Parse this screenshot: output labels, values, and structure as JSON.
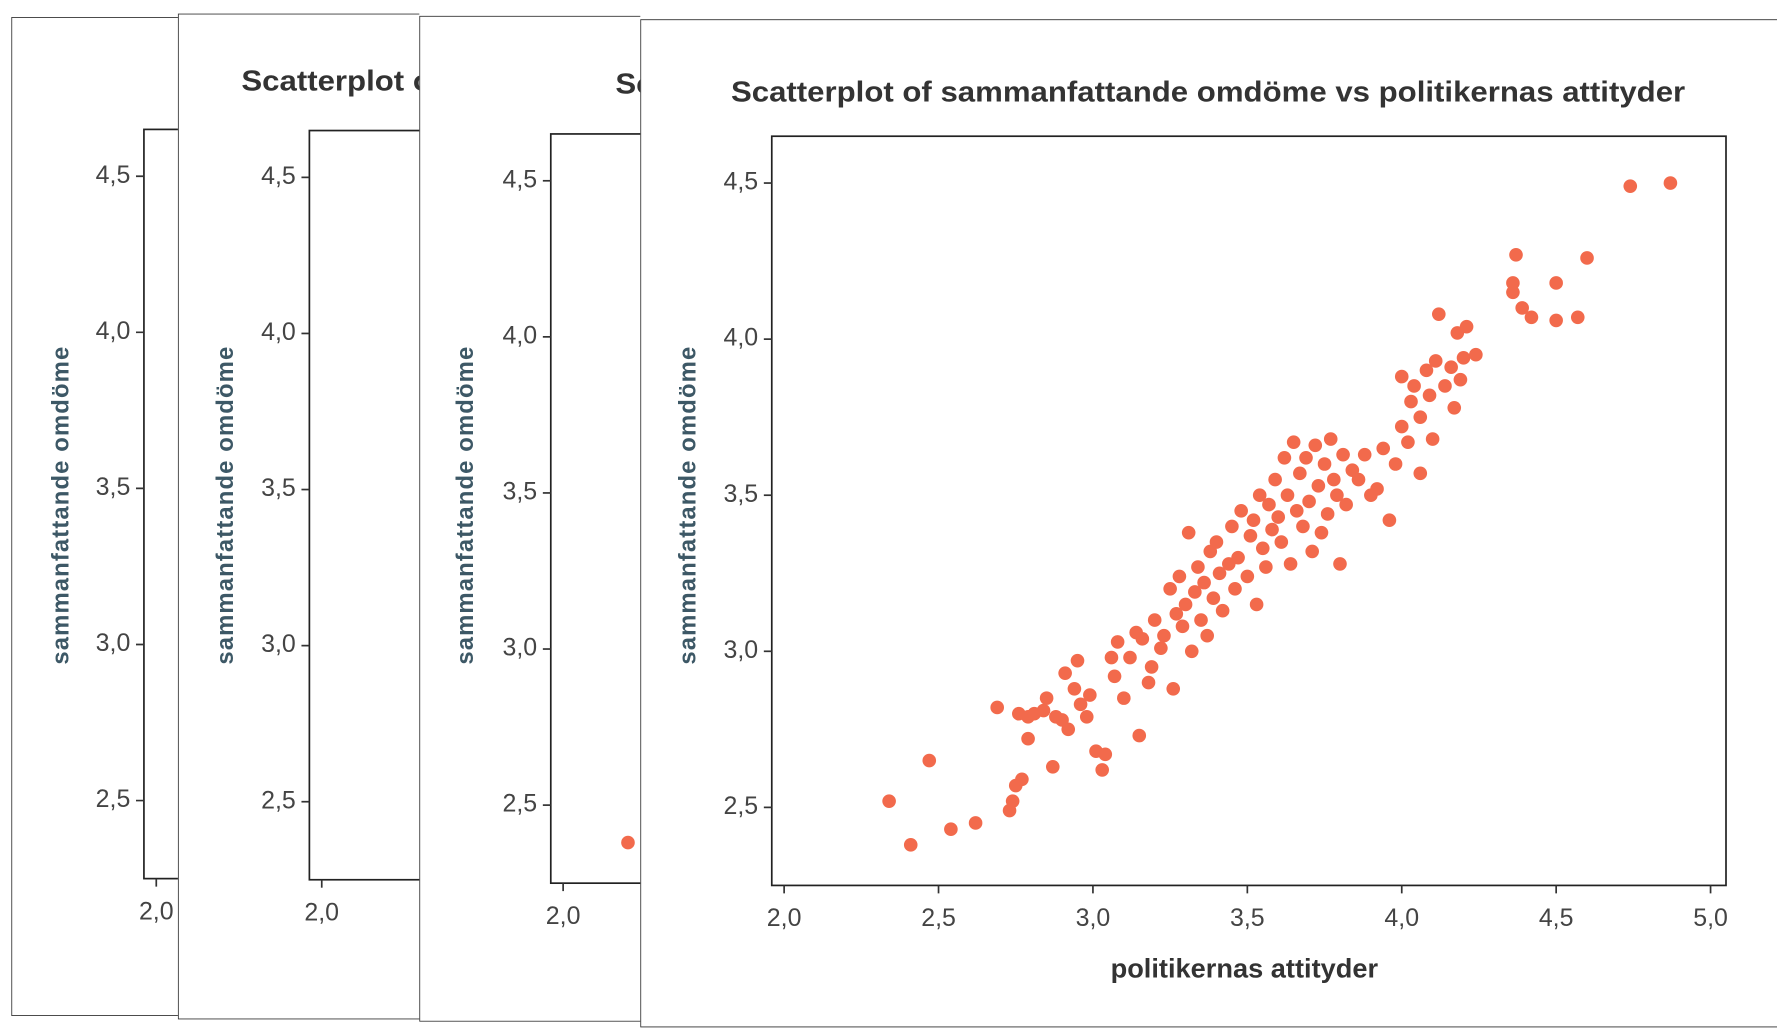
{
  "chart_data": [
    {
      "type": "scatter",
      "ylabel": "sammanfattande omdöme",
      "xlim": [
        1.96,
        5.05
      ],
      "ylim": [
        2.25,
        4.65
      ],
      "xticks": [
        {
          "value": 2.0,
          "label": "2,0"
        }
      ],
      "yticks": [
        {
          "value": 2.5,
          "label": "2,5"
        },
        {
          "value": 3.0,
          "label": "3,0"
        },
        {
          "value": 3.5,
          "label": "3,5"
        },
        {
          "value": 4.0,
          "label": "4,0"
        },
        {
          "value": 4.5,
          "label": "4,5"
        }
      ]
    },
    {
      "type": "scatter",
      "title": "Scatterplot of sammanfattande omdöme vs politikernas attityder",
      "ylabel": "sammanfattande omdöme",
      "xlim": [
        1.96,
        5.05
      ],
      "ylim": [
        2.25,
        4.65
      ],
      "xticks": [
        {
          "value": 2.0,
          "label": "2,0"
        }
      ],
      "yticks": [
        {
          "value": 2.5,
          "label": "2,5"
        },
        {
          "value": 3.0,
          "label": "3,0"
        },
        {
          "value": 3.5,
          "label": "3,5"
        },
        {
          "value": 4.0,
          "label": "4,0"
        },
        {
          "value": 4.5,
          "label": "4,5"
        }
      ]
    },
    {
      "type": "scatter",
      "title": "Scatterplot of sammanfattande omdöme vs politikernas attityder",
      "ylabel": "sammanfattande omdöme",
      "xlim": [
        1.96,
        5.05
      ],
      "ylim": [
        2.25,
        4.65
      ],
      "xticks": [
        {
          "value": 2.0,
          "label": "2,0"
        }
      ],
      "yticks": [
        {
          "value": 2.5,
          "label": "2,5"
        },
        {
          "value": 3.0,
          "label": "3,0"
        },
        {
          "value": 3.5,
          "label": "3,5"
        },
        {
          "value": 4.0,
          "label": "4,0"
        },
        {
          "value": 4.5,
          "label": "4,5"
        }
      ],
      "color": "#f26a4c",
      "x": [
        2.21
      ],
      "values": [
        2.38
      ]
    },
    {
      "type": "scatter",
      "title": "Scatterplot of sammanfattande omdöme vs politikernas attityder",
      "xlabel": "politikernas attityder",
      "ylabel": "sammanfattande omdöme",
      "xlim": [
        1.96,
        5.05
      ],
      "ylim": [
        2.25,
        4.65
      ],
      "xticks": [
        {
          "value": 2.0,
          "label": "2,0"
        },
        {
          "value": 2.5,
          "label": "2,5"
        },
        {
          "value": 3.0,
          "label": "3,0"
        },
        {
          "value": 3.5,
          "label": "3,5"
        },
        {
          "value": 4.0,
          "label": "4,0"
        },
        {
          "value": 4.5,
          "label": "4,5"
        },
        {
          "value": 5.0,
          "label": "5,0"
        }
      ],
      "yticks": [
        {
          "value": 2.5,
          "label": "2,5"
        },
        {
          "value": 3.0,
          "label": "3,0"
        },
        {
          "value": 3.5,
          "label": "3,5"
        },
        {
          "value": 4.0,
          "label": "4,0"
        },
        {
          "value": 4.5,
          "label": "4,5"
        }
      ],
      "color": "#f26a4c",
      "x": [
        2.34,
        2.41,
        2.47,
        2.54,
        2.62,
        2.69,
        2.73,
        2.74,
        2.75,
        2.77,
        2.76,
        2.79,
        2.79,
        2.81,
        2.84,
        2.85,
        2.87,
        2.88,
        2.9,
        2.91,
        2.92,
        2.94,
        2.95,
        2.96,
        2.98,
        2.99,
        3.01,
        3.03,
        3.04,
        3.06,
        3.07,
        3.08,
        3.1,
        3.12,
        3.14,
        3.15,
        3.16,
        3.18,
        3.19,
        3.2,
        3.22,
        3.23,
        3.25,
        3.26,
        3.27,
        3.28,
        3.29,
        3.3,
        3.31,
        3.32,
        3.33,
        3.34,
        3.35,
        3.36,
        3.37,
        3.38,
        3.39,
        3.4,
        3.41,
        3.42,
        3.44,
        3.45,
        3.46,
        3.47,
        3.48,
        3.5,
        3.51,
        3.52,
        3.53,
        3.54,
        3.55,
        3.56,
        3.57,
        3.58,
        3.59,
        3.6,
        3.61,
        3.62,
        3.63,
        3.64,
        3.65,
        3.66,
        3.67,
        3.68,
        3.69,
        3.7,
        3.71,
        3.72,
        3.73,
        3.74,
        3.75,
        3.76,
        3.77,
        3.78,
        3.79,
        3.8,
        3.81,
        3.82,
        3.84,
        3.86,
        3.88,
        3.9,
        3.92,
        3.94,
        3.96,
        3.98,
        4.0,
        4.0,
        4.02,
        4.03,
        4.04,
        4.06,
        4.06,
        4.08,
        4.09,
        4.1,
        4.11,
        4.12,
        4.14,
        4.16,
        4.17,
        4.18,
        4.19,
        4.2,
        4.21,
        4.24,
        4.36,
        4.36,
        4.37,
        4.39,
        4.42,
        4.5,
        4.5,
        4.57,
        4.6,
        4.74,
        4.87
      ],
      "values": [
        2.52,
        2.38,
        2.65,
        2.43,
        2.45,
        2.82,
        2.49,
        2.52,
        2.57,
        2.59,
        2.8,
        2.79,
        2.72,
        2.8,
        2.81,
        2.85,
        2.63,
        2.79,
        2.78,
        2.93,
        2.75,
        2.88,
        2.97,
        2.83,
        2.79,
        2.86,
        2.68,
        2.62,
        2.67,
        2.98,
        2.92,
        3.03,
        2.85,
        2.98,
        3.06,
        2.73,
        3.04,
        2.9,
        2.95,
        3.1,
        3.01,
        3.05,
        3.2,
        2.88,
        3.12,
        3.24,
        3.08,
        3.15,
        3.38,
        3.0,
        3.19,
        3.27,
        3.1,
        3.22,
        3.05,
        3.32,
        3.17,
        3.35,
        3.25,
        3.13,
        3.28,
        3.4,
        3.2,
        3.3,
        3.45,
        3.24,
        3.37,
        3.42,
        3.15,
        3.5,
        3.33,
        3.27,
        3.47,
        3.39,
        3.55,
        3.43,
        3.35,
        3.62,
        3.5,
        3.28,
        3.67,
        3.45,
        3.57,
        3.4,
        3.62,
        3.48,
        3.32,
        3.66,
        3.53,
        3.38,
        3.6,
        3.44,
        3.68,
        3.55,
        3.5,
        3.28,
        3.63,
        3.47,
        3.58,
        3.55,
        3.63,
        3.5,
        3.52,
        3.65,
        3.42,
        3.6,
        3.72,
        3.88,
        3.67,
        3.8,
        3.85,
        3.75,
        3.57,
        3.9,
        3.82,
        3.68,
        3.93,
        4.08,
        3.85,
        3.91,
        3.78,
        4.02,
        3.87,
        3.94,
        4.04,
        3.95,
        4.15,
        4.18,
        4.27,
        4.1,
        4.07,
        4.18,
        4.06,
        4.07,
        4.26,
        4.49,
        4.5
      ]
    }
  ]
}
